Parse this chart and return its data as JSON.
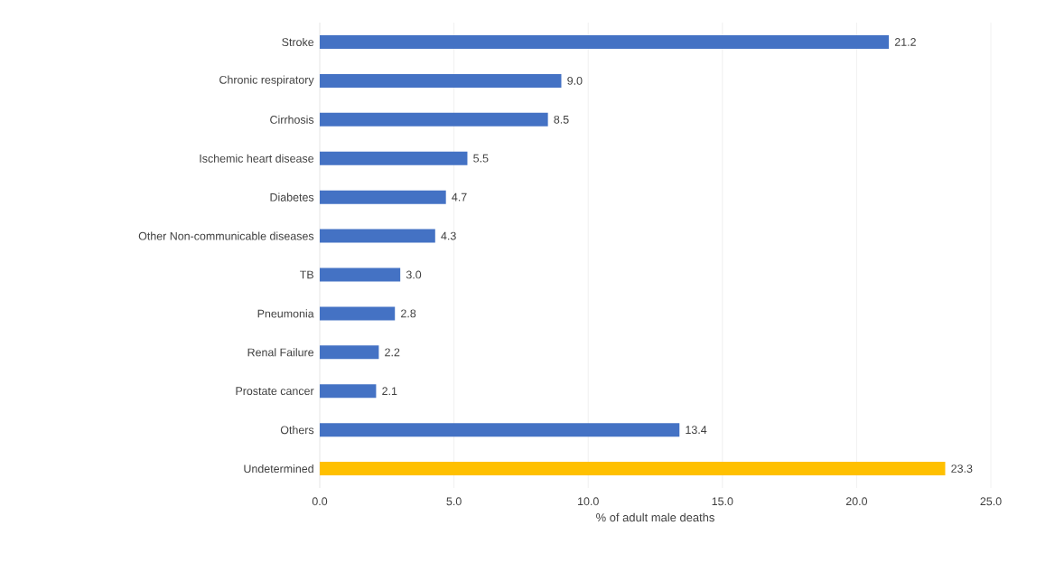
{
  "chart_data": {
    "type": "bar",
    "orientation": "horizontal",
    "xlabel": "% of adult male deaths",
    "categories": [
      "Stroke",
      "Chronic respiratory",
      "Cirrhosis",
      "Ischemic heart disease",
      "Diabetes",
      "Other Non-communicable diseases",
      "TB",
      "Pneumonia",
      "Renal Failure",
      "Prostate cancer",
      "Others",
      "Undetermined"
    ],
    "values": [
      21.2,
      9.0,
      8.5,
      5.5,
      4.7,
      4.3,
      3.0,
      2.8,
      2.2,
      2.1,
      13.4,
      23.3
    ],
    "value_labels": [
      "21.2",
      "9.0",
      "8.5",
      "5.5",
      "4.7",
      "4.3",
      "3.0",
      "2.8",
      "2.2",
      "2.1",
      "13.4",
      "23.3"
    ],
    "colors": [
      "#4472c4",
      "#4472c4",
      "#4472c4",
      "#4472c4",
      "#4472c4",
      "#4472c4",
      "#4472c4",
      "#4472c4",
      "#4472c4",
      "#4472c4",
      "#4472c4",
      "#ffc000"
    ],
    "xlim": [
      0,
      25
    ],
    "xticks": [
      {
        "value": 0,
        "label": "0.0"
      },
      {
        "value": 5,
        "label": "5.0"
      },
      {
        "value": 10,
        "label": "10.0"
      },
      {
        "value": 15,
        "label": "15.0"
      },
      {
        "value": 20,
        "label": "20.0"
      },
      {
        "value": 25,
        "label": "25.0"
      }
    ],
    "grid": "x"
  }
}
